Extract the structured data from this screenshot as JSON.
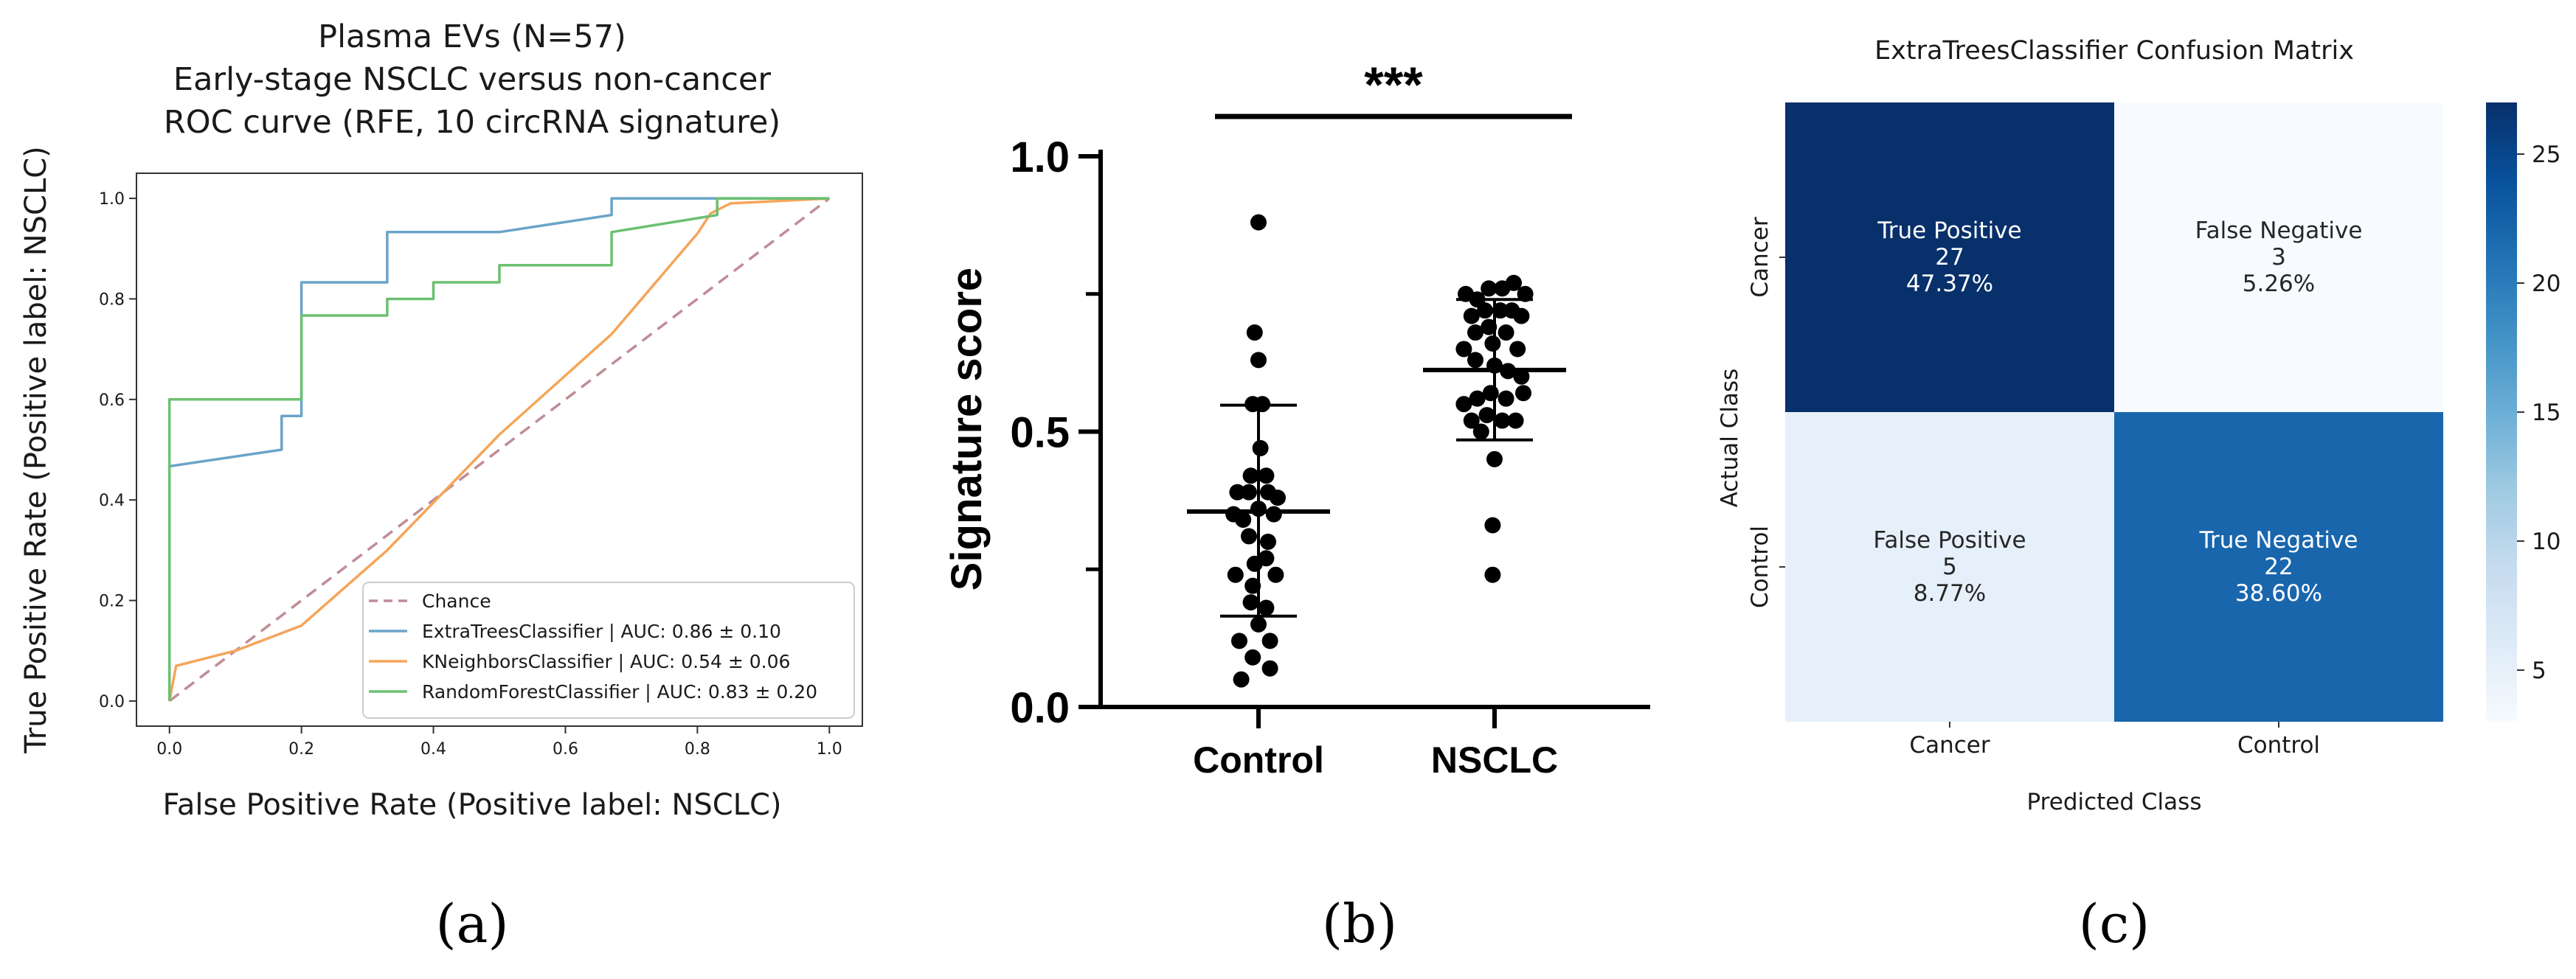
{
  "chart_data": [
    {
      "type": "line",
      "panel_label": "(a)",
      "title": "Plasma EVs (N=57)\nEarly-stage NSCLC versus non-cancer\nROC curve (RFE, 10 circRNA signature)",
      "xlabel": "False Positive Rate (Positive label: NSCLC)",
      "ylabel": "True Positive Rate (Positive label: NSCLC)",
      "xlim": [
        -0.05,
        1.05
      ],
      "ylim": [
        -0.05,
        1.05
      ],
      "ticks": [
        "0.0",
        "0.2",
        "0.4",
        "0.6",
        "0.8",
        "1.0"
      ],
      "legend_position": "lower-right",
      "series": [
        {
          "name": "Chance",
          "style": "dashed",
          "color": "#c08c96",
          "x": [
            0,
            1
          ],
          "y": [
            0,
            1
          ]
        },
        {
          "name": "ExtraTreesClassifier | AUC: 0.86 ± 0.10",
          "color": "#6aa4c8",
          "x": [
            0,
            0,
            0.17,
            0.17,
            0.2,
            0.2,
            0.33,
            0.33,
            0.5,
            0.67,
            0.67,
            1.0
          ],
          "y": [
            0,
            0.467,
            0.5,
            0.567,
            0.567,
            0.833,
            0.833,
            0.933,
            0.933,
            0.967,
            1.0,
            1.0
          ]
        },
        {
          "name": "KNeighborsClassifier | AUC: 0.54 ± 0.06",
          "color": "#f5a55a",
          "x": [
            0,
            0.01,
            0.1,
            0.2,
            0.33,
            0.5,
            0.67,
            0.8,
            0.82,
            0.85,
            1.0
          ],
          "y": [
            0,
            0.07,
            0.1,
            0.15,
            0.3,
            0.53,
            0.73,
            0.93,
            0.97,
            0.99,
            1.0
          ]
        },
        {
          "name": "RandomForestClassifier | AUC: 0.83 ± 0.20",
          "color": "#6cc071",
          "x": [
            0,
            0,
            0.01,
            0.2,
            0.2,
            0.33,
            0.33,
            0.4,
            0.4,
            0.5,
            0.5,
            0.67,
            0.67,
            0.83,
            0.83,
            1.0
          ],
          "y": [
            0,
            0.6,
            0.6,
            0.6,
            0.767,
            0.767,
            0.8,
            0.8,
            0.833,
            0.833,
            0.867,
            0.867,
            0.933,
            0.967,
            1.0,
            1.0
          ]
        }
      ]
    },
    {
      "type": "scatter",
      "panel_label": "(b)",
      "ylabel": "Signature score",
      "categories": [
        "Control",
        "NSCLC"
      ],
      "ylim": [
        0.0,
        1.0
      ],
      "yticks": [
        "0.0",
        "0.5",
        "1.0"
      ],
      "significance": "***",
      "groups": [
        {
          "name": "Control",
          "mean": 0.355,
          "sd_low": 0.165,
          "sd_high": 0.548,
          "points": [
            [
              0.0,
              0.88
            ],
            [
              -0.02,
              0.68
            ],
            [
              0.0,
              0.63
            ],
            [
              -0.03,
              0.55
            ],
            [
              0.02,
              0.55
            ],
            [
              0.01,
              0.47
            ],
            [
              -0.04,
              0.42
            ],
            [
              0.04,
              0.42
            ],
            [
              -0.11,
              0.39
            ],
            [
              -0.05,
              0.39
            ],
            [
              0.05,
              0.39
            ],
            [
              0.1,
              0.38
            ],
            [
              -0.13,
              0.35
            ],
            [
              -0.08,
              0.34
            ],
            [
              0.0,
              0.36
            ],
            [
              0.08,
              0.35
            ],
            [
              -0.05,
              0.31
            ],
            [
              0.05,
              0.3
            ],
            [
              -0.02,
              0.26
            ],
            [
              0.04,
              0.27
            ],
            [
              -0.12,
              0.24
            ],
            [
              0.09,
              0.24
            ],
            [
              -0.03,
              0.22
            ],
            [
              -0.04,
              0.19
            ],
            [
              0.04,
              0.18
            ],
            [
              0.0,
              0.15
            ],
            [
              -0.1,
              0.12
            ],
            [
              0.06,
              0.12
            ],
            [
              -0.03,
              0.09
            ],
            [
              0.06,
              0.07
            ],
            [
              -0.09,
              0.05
            ]
          ]
        },
        {
          "name": "NSCLC",
          "mean": 0.612,
          "sd_low": 0.485,
          "sd_high": 0.74,
          "points": [
            [
              -0.15,
              0.75
            ],
            [
              -0.09,
              0.74
            ],
            [
              -0.03,
              0.76
            ],
            [
              0.04,
              0.76
            ],
            [
              0.1,
              0.77
            ],
            [
              0.16,
              0.75
            ],
            [
              -0.12,
              0.71
            ],
            [
              -0.05,
              0.72
            ],
            [
              0.03,
              0.72
            ],
            [
              0.09,
              0.72
            ],
            [
              0.14,
              0.71
            ],
            [
              -0.1,
              0.68
            ],
            [
              -0.03,
              0.69
            ],
            [
              0.06,
              0.68
            ],
            [
              -0.16,
              0.65
            ],
            [
              -0.01,
              0.66
            ],
            [
              0.12,
              0.65
            ],
            [
              -0.1,
              0.63
            ],
            [
              0.0,
              0.62
            ],
            [
              0.07,
              0.61
            ],
            [
              0.14,
              0.6
            ],
            [
              -0.16,
              0.55
            ],
            [
              -0.09,
              0.56
            ],
            [
              -0.02,
              0.57
            ],
            [
              0.06,
              0.56
            ],
            [
              0.15,
              0.57
            ],
            [
              -0.12,
              0.52
            ],
            [
              -0.04,
              0.53
            ],
            [
              0.04,
              0.52
            ],
            [
              0.11,
              0.52
            ],
            [
              -0.07,
              0.5
            ],
            [
              0.0,
              0.45
            ],
            [
              -0.01,
              0.33
            ],
            [
              -0.01,
              0.24
            ]
          ]
        }
      ]
    },
    {
      "type": "heatmap",
      "panel_label": "(c)",
      "title": "ExtraTreesClassifier Confusion Matrix",
      "xlabel": "Predicted Class",
      "ylabel": "Actual Class",
      "x_categories": [
        "Cancer",
        "Control"
      ],
      "y_categories": [
        "Cancer",
        "Control"
      ],
      "cells": [
        [
          {
            "label": "True Positive",
            "count": "27",
            "pct": "47.37%",
            "value": 27
          },
          {
            "label": "False Negative",
            "count": "3",
            "pct": "5.26%",
            "value": 3
          }
        ],
        [
          {
            "label": "False Positive",
            "count": "5",
            "pct": "8.77%",
            "value": 5
          },
          {
            "label": "True Negative",
            "count": "22",
            "pct": "38.60%",
            "value": 22
          }
        ]
      ],
      "colorbar": {
        "ticks": [
          "5",
          "10",
          "15",
          "20",
          "25"
        ],
        "tick_values": [
          5,
          10,
          15,
          20,
          25
        ],
        "min": 3,
        "max": 27,
        "colormap": "Blues"
      }
    }
  ]
}
